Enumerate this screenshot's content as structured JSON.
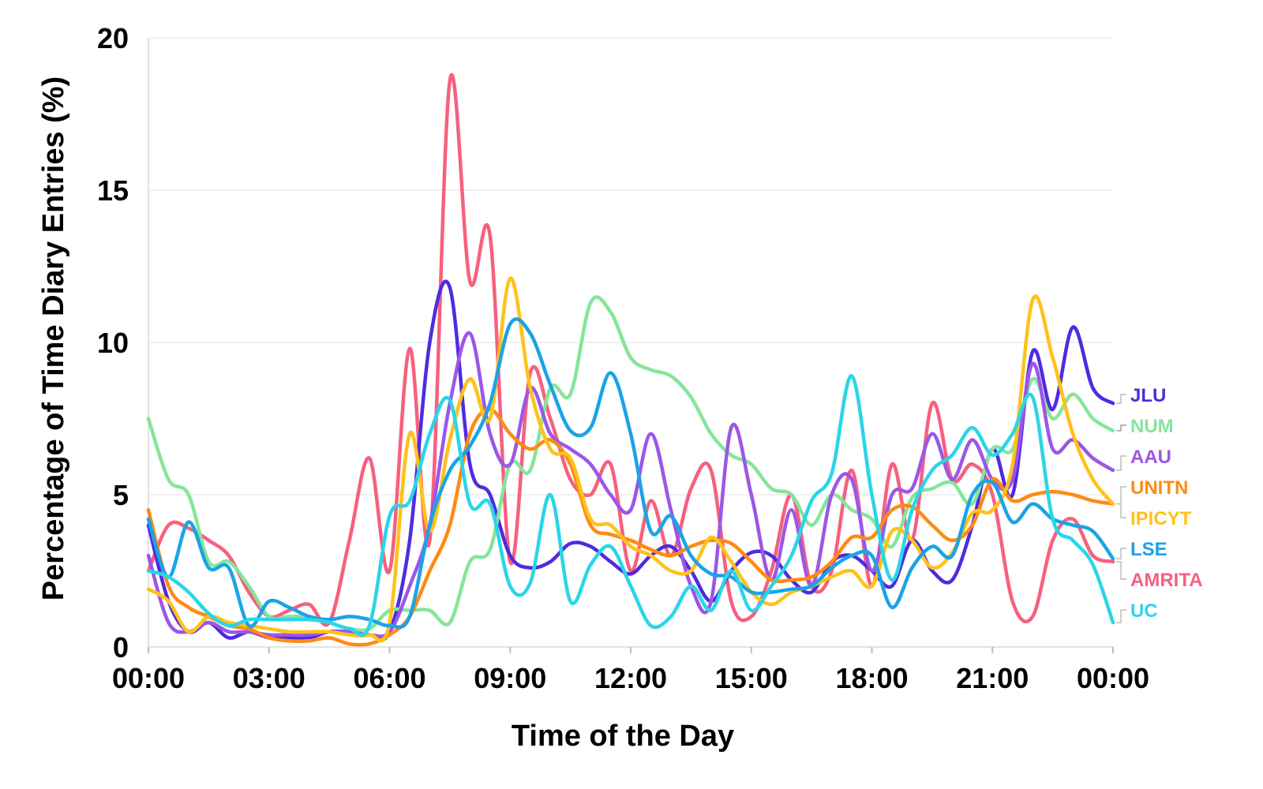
{
  "chart_data": {
    "type": "line",
    "xlabel": "Time of the Day",
    "ylabel": "Percentage of Time Diary Entries (%)",
    "ylim": [
      0,
      20
    ],
    "xlim": [
      0,
      24
    ],
    "y_ticks": [
      0,
      5,
      10,
      15,
      20
    ],
    "x_ticks": [
      {
        "value": 0,
        "label": "00:00"
      },
      {
        "value": 3,
        "label": "03:00"
      },
      {
        "value": 6,
        "label": "06:00"
      },
      {
        "value": 9,
        "label": "09:00"
      },
      {
        "value": 12,
        "label": "12:00"
      },
      {
        "value": 15,
        "label": "15:00"
      },
      {
        "value": 18,
        "label": "18:00"
      },
      {
        "value": 21,
        "label": "21:00"
      },
      {
        "value": 24,
        "label": "00:00"
      }
    ],
    "grid": true,
    "legend": "right, end-of-line labels",
    "series": [
      {
        "name": "AMRITA",
        "color": "#f7607e",
        "x": [
          0,
          0.5,
          1,
          1.5,
          2,
          2.5,
          3,
          3.5,
          4,
          4.5,
          5,
          5.5,
          6,
          6.5,
          7,
          7.5,
          8,
          8.5,
          9,
          9.5,
          10,
          10.5,
          11,
          11.5,
          12,
          12.5,
          13,
          13.5,
          14,
          14.5,
          15,
          15.5,
          16,
          16.5,
          17,
          17.5,
          18,
          18.5,
          19,
          19.5,
          20,
          20.5,
          21,
          21.5,
          22,
          22.5,
          23,
          23.5,
          24
        ],
        "y": [
          2.5,
          4.0,
          3.9,
          3.5,
          3.0,
          1.8,
          1.0,
          1.2,
          1.4,
          0.8,
          3.5,
          6.2,
          2.5,
          9.8,
          3.5,
          18.6,
          12.0,
          13.5,
          2.8,
          9.0,
          7.5,
          5.5,
          5.0,
          6.0,
          2.5,
          4.8,
          3.0,
          5.2,
          5.8,
          1.5,
          1.0,
          2.5,
          5.0,
          2.0,
          2.5,
          5.8,
          2.0,
          6.0,
          3.5,
          8.0,
          5.5,
          6.0,
          5.0,
          1.5,
          1.0,
          3.5,
          4.2,
          3.0,
          2.8
        ]
      },
      {
        "name": "JLU",
        "color": "#4f2be0",
        "x": [
          0,
          0.5,
          1,
          1.5,
          2,
          2.5,
          3,
          3.5,
          4,
          4.5,
          5,
          5.5,
          6,
          6.5,
          7,
          7.5,
          8,
          8.5,
          9,
          9.5,
          10,
          10.5,
          11,
          11.5,
          12,
          12.5,
          13,
          13.5,
          14,
          14.5,
          15,
          15.5,
          16,
          16.5,
          17,
          17.5,
          18,
          18.5,
          19,
          19.5,
          20,
          20.5,
          21,
          21.5,
          22,
          22.5,
          23,
          23.5,
          24
        ],
        "y": [
          4.0,
          1.5,
          0.5,
          0.8,
          0.3,
          0.5,
          0.3,
          0.3,
          0.3,
          0.5,
          0.5,
          0.4,
          0.5,
          3.5,
          10.0,
          11.8,
          6.0,
          5.0,
          3.0,
          2.6,
          2.8,
          3.4,
          3.3,
          2.8,
          2.4,
          3.0,
          3.3,
          2.5,
          1.5,
          2.5,
          3.1,
          3.0,
          2.2,
          1.8,
          2.8,
          3.0,
          2.5,
          2.0,
          3.5,
          2.5,
          2.2,
          4.0,
          6.5,
          5.0,
          9.7,
          7.8,
          10.5,
          8.5,
          8.0
        ]
      },
      {
        "name": "NUM",
        "color": "#86e59a",
        "x": [
          0,
          0.5,
          1,
          1.5,
          2,
          2.5,
          3,
          3.5,
          4,
          4.5,
          5,
          5.5,
          6,
          6.5,
          7,
          7.5,
          8,
          8.5,
          9,
          9.5,
          10,
          10.5,
          11,
          11.5,
          12,
          12.5,
          13,
          13.5,
          14,
          14.5,
          15,
          15.5,
          16,
          16.5,
          17,
          17.5,
          18,
          18.5,
          19,
          19.5,
          20,
          20.5,
          21,
          21.5,
          22,
          22.5,
          23,
          23.5,
          24
        ],
        "y": [
          7.5,
          5.5,
          5.0,
          2.8,
          2.8,
          2.0,
          1.0,
          1.0,
          1.0,
          0.8,
          0.6,
          0.6,
          1.2,
          1.2,
          1.2,
          0.8,
          2.8,
          3.2,
          6.0,
          5.8,
          8.5,
          8.3,
          11.3,
          11.0,
          9.5,
          9.1,
          8.9,
          8.2,
          7.0,
          6.3,
          6.0,
          5.2,
          5.0,
          4.0,
          5.0,
          4.5,
          4.2,
          3.3,
          4.9,
          5.2,
          5.4,
          4.7,
          6.5,
          6.5,
          8.8,
          7.5,
          8.3,
          7.5,
          7.1
        ]
      },
      {
        "name": "AAU",
        "color": "#9b57e6",
        "x": [
          0,
          0.5,
          1,
          1.5,
          2,
          2.5,
          3,
          3.5,
          4,
          4.5,
          5,
          5.5,
          6,
          6.5,
          7,
          7.5,
          8,
          8.5,
          9,
          9.5,
          10,
          10.5,
          11,
          11.5,
          12,
          12.5,
          13,
          13.5,
          14,
          14.5,
          15,
          15.5,
          16,
          16.5,
          17,
          17.5,
          18,
          18.5,
          19,
          19.5,
          20,
          20.5,
          21,
          21.5,
          22,
          22.5,
          23,
          23.5,
          24
        ],
        "y": [
          3.0,
          0.8,
          0.5,
          0.8,
          0.5,
          0.5,
          0.4,
          0.4,
          0.4,
          0.5,
          0.5,
          0.4,
          0.5,
          2.0,
          4.0,
          8.0,
          10.3,
          7.0,
          6.0,
          8.5,
          7.0,
          6.5,
          6.0,
          5.0,
          4.5,
          7.0,
          4.5,
          2.0,
          1.5,
          7.2,
          5.0,
          2.2,
          4.5,
          2.0,
          5.0,
          5.5,
          2.5,
          5.0,
          5.2,
          7.0,
          5.5,
          6.8,
          5.5,
          5.5,
          9.3,
          6.5,
          6.8,
          6.2,
          5.8
        ]
      },
      {
        "name": "UNITN",
        "color": "#ff8a15",
        "x": [
          0,
          0.5,
          1,
          1.5,
          2,
          2.5,
          3,
          3.5,
          4,
          4.5,
          5,
          5.5,
          6,
          6.5,
          7,
          7.5,
          8,
          8.5,
          9,
          9.5,
          10,
          10.5,
          11,
          11.5,
          12,
          12.5,
          13,
          13.5,
          14,
          14.5,
          15,
          15.5,
          16,
          16.5,
          17,
          17.5,
          18,
          18.5,
          19,
          19.5,
          20,
          20.5,
          21,
          21.5,
          22,
          22.5,
          23,
          23.5,
          24
        ],
        "y": [
          4.5,
          2.0,
          1.3,
          1.0,
          0.7,
          0.6,
          0.3,
          0.2,
          0.2,
          0.3,
          0.1,
          0.1,
          0.4,
          1.0,
          2.5,
          4.0,
          7.0,
          7.8,
          7.0,
          6.5,
          6.8,
          6.0,
          4.0,
          3.7,
          3.5,
          3.2,
          3.0,
          3.3,
          3.5,
          3.4,
          2.8,
          2.2,
          2.2,
          2.3,
          2.8,
          3.6,
          3.6,
          4.5,
          4.6,
          4.0,
          3.5,
          4.0,
          5.5,
          4.8,
          5.0,
          5.1,
          5.0,
          4.8,
          4.7
        ]
      },
      {
        "name": "IPICYT",
        "color": "#ffc21a",
        "x": [
          0,
          0.5,
          1,
          1.5,
          2,
          2.5,
          3,
          3.5,
          4,
          4.5,
          5,
          5.5,
          6,
          6.5,
          7,
          7.5,
          8,
          8.5,
          9,
          9.5,
          10,
          10.5,
          11,
          11.5,
          12,
          12.5,
          13,
          13.5,
          14,
          14.5,
          15,
          15.5,
          16,
          16.5,
          17,
          17.5,
          18,
          18.5,
          19,
          19.5,
          20,
          20.5,
          21,
          21.5,
          22,
          22.5,
          23,
          23.5,
          24
        ],
        "y": [
          1.9,
          1.5,
          0.5,
          1.0,
          0.8,
          0.7,
          0.6,
          0.5,
          0.5,
          0.5,
          0.4,
          0.4,
          0.8,
          7.0,
          3.8,
          6.8,
          8.8,
          7.5,
          12.1,
          8.5,
          6.5,
          6.2,
          4.2,
          4.0,
          3.3,
          3.0,
          2.5,
          2.5,
          3.6,
          2.8,
          1.8,
          1.4,
          1.8,
          2.0,
          2.3,
          2.5,
          2.0,
          3.8,
          3.5,
          2.6,
          3.1,
          4.4,
          4.5,
          6.0,
          11.4,
          9.5,
          7.0,
          5.5,
          4.7
        ]
      },
      {
        "name": "LSE",
        "color": "#1ba3e6",
        "x": [
          0,
          0.5,
          1,
          1.5,
          2,
          2.5,
          3,
          3.5,
          4,
          4.5,
          5,
          5.5,
          6,
          6.5,
          7,
          7.5,
          8,
          8.5,
          9,
          9.5,
          10,
          10.5,
          11,
          11.5,
          12,
          12.5,
          13,
          13.5,
          14,
          14.5,
          15,
          15.5,
          16,
          16.5,
          17,
          17.5,
          18,
          18.5,
          19,
          19.5,
          20,
          20.5,
          21,
          21.5,
          22,
          22.5,
          23,
          23.5,
          24
        ],
        "y": [
          4.2,
          2.3,
          4.1,
          2.6,
          2.6,
          0.7,
          1.5,
          1.3,
          1.0,
          0.9,
          1.0,
          0.9,
          0.7,
          1.0,
          4.0,
          5.8,
          6.6,
          8.0,
          10.6,
          10.3,
          8.6,
          7.1,
          7.2,
          9.0,
          7.0,
          3.8,
          4.3,
          3.0,
          2.4,
          2.3,
          1.8,
          1.8,
          1.9,
          2.0,
          2.6,
          3.0,
          3.0,
          1.3,
          2.6,
          3.3,
          3.0,
          5.0,
          5.4,
          4.1,
          4.7,
          4.2,
          4.0,
          3.8,
          2.9
        ]
      },
      {
        "name": "UC",
        "color": "#2bd5e8",
        "x": [
          0,
          0.5,
          1,
          1.5,
          2,
          2.5,
          3,
          3.5,
          4,
          4.5,
          5,
          5.5,
          6,
          6.5,
          7,
          7.5,
          8,
          8.5,
          9,
          9.5,
          10,
          10.5,
          11,
          11.5,
          12,
          12.5,
          13,
          13.5,
          14,
          14.5,
          15,
          15.5,
          16,
          16.5,
          17,
          17.5,
          18,
          18.5,
          19,
          19.5,
          20,
          20.5,
          21,
          21.5,
          22,
          22.5,
          23,
          23.5,
          24
        ],
        "y": [
          2.5,
          2.3,
          1.8,
          1.1,
          0.7,
          0.9,
          0.9,
          0.9,
          0.9,
          0.8,
          0.6,
          0.7,
          4.3,
          4.8,
          7.0,
          8.1,
          4.7,
          4.7,
          2.0,
          2.1,
          5.0,
          1.5,
          2.7,
          3.3,
          2.0,
          0.7,
          1.0,
          2.0,
          1.2,
          2.5,
          1.2,
          2.0,
          3.0,
          4.8,
          5.7,
          8.9,
          5.0,
          2.2,
          4.5,
          5.8,
          6.3,
          7.2,
          6.3,
          7.0,
          8.2,
          4.2,
          3.5,
          2.7,
          0.8
        ]
      }
    ]
  }
}
